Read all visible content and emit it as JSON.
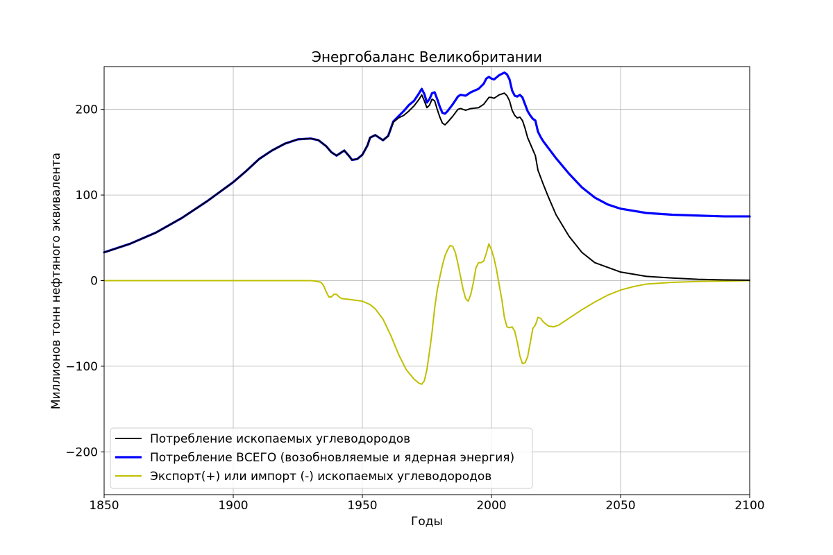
{
  "chart_data": {
    "type": "line",
    "title": "Энергобаланс Великобритании",
    "xlabel": "Годы",
    "ylabel": "Миллионов тонн нефтяного эквивалента",
    "xlim": [
      1850,
      2100
    ],
    "ylim": [
      -250,
      250
    ],
    "xticks": [
      1850,
      1900,
      1950,
      2000,
      2050,
      2100
    ],
    "yticks": [
      -200,
      -100,
      0,
      100,
      200
    ],
    "ytick_labels": [
      "−200",
      "−100",
      "0",
      "100",
      "200"
    ],
    "grid": true,
    "legend_position": "lower-left",
    "series": [
      {
        "name": "Потребление ископаемых углеводородов",
        "color": "#000000",
        "points": [
          [
            1850,
            33
          ],
          [
            1860,
            43
          ],
          [
            1870,
            56
          ],
          [
            1880,
            73
          ],
          [
            1890,
            93
          ],
          [
            1900,
            115
          ],
          [
            1905,
            128
          ],
          [
            1910,
            142
          ],
          [
            1915,
            152
          ],
          [
            1920,
            160
          ],
          [
            1925,
            165
          ],
          [
            1930,
            166
          ],
          [
            1933,
            164
          ],
          [
            1936,
            157
          ],
          [
            1938,
            150
          ],
          [
            1940,
            146
          ],
          [
            1941,
            148
          ],
          [
            1943,
            152
          ],
          [
            1945,
            145
          ],
          [
            1946,
            141
          ],
          [
            1948,
            142
          ],
          [
            1950,
            147
          ],
          [
            1952,
            158
          ],
          [
            1953,
            167
          ],
          [
            1955,
            170
          ],
          [
            1957,
            166
          ],
          [
            1958,
            164
          ],
          [
            1960,
            169
          ],
          [
            1962,
            185
          ],
          [
            1964,
            190
          ],
          [
            1966,
            193
          ],
          [
            1968,
            198
          ],
          [
            1970,
            204
          ],
          [
            1972,
            212
          ],
          [
            1973,
            217
          ],
          [
            1974,
            210
          ],
          [
            1975,
            202
          ],
          [
            1976,
            205
          ],
          [
            1977,
            212
          ],
          [
            1978,
            210
          ],
          [
            1979,
            200
          ],
          [
            1980,
            191
          ],
          [
            1981,
            184
          ],
          [
            1982,
            182
          ],
          [
            1983,
            185
          ],
          [
            1985,
            192
          ],
          [
            1987,
            200
          ],
          [
            1988,
            201
          ],
          [
            1990,
            199
          ],
          [
            1992,
            201
          ],
          [
            1995,
            202
          ],
          [
            1997,
            206
          ],
          [
            1998,
            210
          ],
          [
            1999,
            214
          ],
          [
            2000,
            214
          ],
          [
            2001,
            213
          ],
          [
            2003,
            217
          ],
          [
            2005,
            219
          ],
          [
            2006,
            216
          ],
          [
            2007,
            210
          ],
          [
            2008,
            199
          ],
          [
            2009,
            193
          ],
          [
            2010,
            190
          ],
          [
            2011,
            191
          ],
          [
            2012,
            187
          ],
          [
            2013,
            178
          ],
          [
            2014,
            167
          ],
          [
            2015,
            160
          ],
          [
            2016,
            153
          ],
          [
            2017,
            146
          ],
          [
            2018,
            129
          ],
          [
            2019,
            121
          ],
          [
            2020,
            113
          ],
          [
            2022,
            98
          ],
          [
            2025,
            77
          ],
          [
            2030,
            52
          ],
          [
            2035,
            33
          ],
          [
            2040,
            21
          ],
          [
            2050,
            10
          ],
          [
            2060,
            5
          ],
          [
            2070,
            3
          ],
          [
            2080,
            1.5
          ],
          [
            2090,
            0.8
          ],
          [
            2100,
            0.5
          ]
        ]
      },
      {
        "name": "Потребление ВСЕГО (возобновляемые и ядерная энергия)",
        "color": "#0000ff",
        "points": [
          [
            1850,
            33
          ],
          [
            1860,
            43
          ],
          [
            1870,
            56
          ],
          [
            1880,
            73
          ],
          [
            1890,
            93
          ],
          [
            1900,
            115
          ],
          [
            1905,
            128
          ],
          [
            1910,
            142
          ],
          [
            1915,
            152
          ],
          [
            1920,
            160
          ],
          [
            1925,
            165
          ],
          [
            1930,
            166
          ],
          [
            1933,
            164
          ],
          [
            1936,
            157
          ],
          [
            1938,
            150
          ],
          [
            1940,
            146
          ],
          [
            1941,
            148
          ],
          [
            1943,
            152
          ],
          [
            1945,
            145
          ],
          [
            1946,
            141
          ],
          [
            1948,
            142
          ],
          [
            1950,
            147
          ],
          [
            1952,
            158
          ],
          [
            1953,
            167
          ],
          [
            1955,
            170
          ],
          [
            1957,
            166
          ],
          [
            1958,
            164
          ],
          [
            1960,
            169
          ],
          [
            1962,
            186
          ],
          [
            1964,
            192
          ],
          [
            1966,
            198
          ],
          [
            1968,
            205
          ],
          [
            1970,
            210
          ],
          [
            1972,
            219
          ],
          [
            1973,
            224
          ],
          [
            1974,
            218
          ],
          [
            1975,
            208
          ],
          [
            1976,
            212
          ],
          [
            1977,
            219
          ],
          [
            1978,
            220
          ],
          [
            1979,
            212
          ],
          [
            1980,
            203
          ],
          [
            1981,
            196
          ],
          [
            1982,
            195
          ],
          [
            1983,
            198
          ],
          [
            1985,
            206
          ],
          [
            1987,
            215
          ],
          [
            1988,
            217
          ],
          [
            1990,
            216
          ],
          [
            1992,
            220
          ],
          [
            1995,
            224
          ],
          [
            1997,
            230
          ],
          [
            1998,
            236
          ],
          [
            1999,
            238
          ],
          [
            2000,
            236
          ],
          [
            2001,
            235
          ],
          [
            2003,
            240
          ],
          [
            2005,
            243
          ],
          [
            2006,
            241
          ],
          [
            2007,
            235
          ],
          [
            2008,
            222
          ],
          [
            2009,
            216
          ],
          [
            2010,
            215
          ],
          [
            2011,
            217
          ],
          [
            2012,
            214
          ],
          [
            2013,
            206
          ],
          [
            2014,
            198
          ],
          [
            2015,
            193
          ],
          [
            2016,
            189
          ],
          [
            2017,
            187
          ],
          [
            2018,
            174
          ],
          [
            2019,
            168
          ],
          [
            2020,
            163
          ],
          [
            2025,
            143
          ],
          [
            2030,
            125
          ],
          [
            2035,
            109
          ],
          [
            2040,
            97
          ],
          [
            2045,
            89
          ],
          [
            2050,
            84
          ],
          [
            2060,
            79
          ],
          [
            2070,
            77
          ],
          [
            2080,
            76
          ],
          [
            2090,
            75
          ],
          [
            2100,
            75
          ]
        ]
      },
      {
        "name": "Экспорт(+) или импорт (-) ископаемых углеводородов",
        "color": "#bfbf00",
        "points": [
          [
            1850,
            0
          ],
          [
            1900,
            0
          ],
          [
            1930,
            0
          ],
          [
            1932,
            -0.5
          ],
          [
            1934,
            -2
          ],
          [
            1935,
            -6
          ],
          [
            1936,
            -13
          ],
          [
            1937,
            -19
          ],
          [
            1938,
            -19
          ],
          [
            1939,
            -16
          ],
          [
            1940,
            -16
          ],
          [
            1941,
            -19
          ],
          [
            1942,
            -21
          ],
          [
            1945,
            -22
          ],
          [
            1950,
            -24
          ],
          [
            1953,
            -28
          ],
          [
            1955,
            -33
          ],
          [
            1958,
            -45
          ],
          [
            1961,
            -64
          ],
          [
            1964,
            -86
          ],
          [
            1967,
            -104
          ],
          [
            1970,
            -115
          ],
          [
            1972,
            -120
          ],
          [
            1973,
            -121
          ],
          [
            1974,
            -117
          ],
          [
            1975,
            -104
          ],
          [
            1976,
            -83
          ],
          [
            1977,
            -60
          ],
          [
            1978,
            -32
          ],
          [
            1979,
            -11
          ],
          [
            1980,
            4
          ],
          [
            1981,
            18
          ],
          [
            1982,
            29
          ],
          [
            1983,
            36
          ],
          [
            1984,
            41
          ],
          [
            1985,
            40
          ],
          [
            1986,
            33
          ],
          [
            1987,
            20
          ],
          [
            1988,
            5
          ],
          [
            1989,
            -10
          ],
          [
            1990,
            -21
          ],
          [
            1991,
            -24
          ],
          [
            1992,
            -16
          ],
          [
            1993,
            -2
          ],
          [
            1994,
            15
          ],
          [
            1995,
            21
          ],
          [
            1996,
            21
          ],
          [
            1997,
            23
          ],
          [
            1998,
            32
          ],
          [
            1999,
            43
          ],
          [
            2000,
            36
          ],
          [
            2001,
            26
          ],
          [
            2002,
            12
          ],
          [
            2003,
            -5
          ],
          [
            2004,
            -22
          ],
          [
            2005,
            -43
          ],
          [
            2006,
            -54
          ],
          [
            2007,
            -55
          ],
          [
            2008,
            -54
          ],
          [
            2009,
            -59
          ],
          [
            2010,
            -72
          ],
          [
            2011,
            -88
          ],
          [
            2012,
            -97
          ],
          [
            2013,
            -96
          ],
          [
            2014,
            -89
          ],
          [
            2015,
            -73
          ],
          [
            2016,
            -56
          ],
          [
            2017,
            -52
          ],
          [
            2018,
            -43
          ],
          [
            2019,
            -44
          ],
          [
            2020,
            -48
          ],
          [
            2022,
            -53
          ],
          [
            2024,
            -54
          ],
          [
            2026,
            -52
          ],
          [
            2030,
            -44
          ],
          [
            2035,
            -34
          ],
          [
            2040,
            -25
          ],
          [
            2045,
            -17
          ],
          [
            2050,
            -11
          ],
          [
            2055,
            -7
          ],
          [
            2060,
            -4
          ],
          [
            2070,
            -2
          ],
          [
            2080,
            -1
          ],
          [
            2090,
            -0.5
          ],
          [
            2100,
            0
          ]
        ]
      }
    ]
  }
}
